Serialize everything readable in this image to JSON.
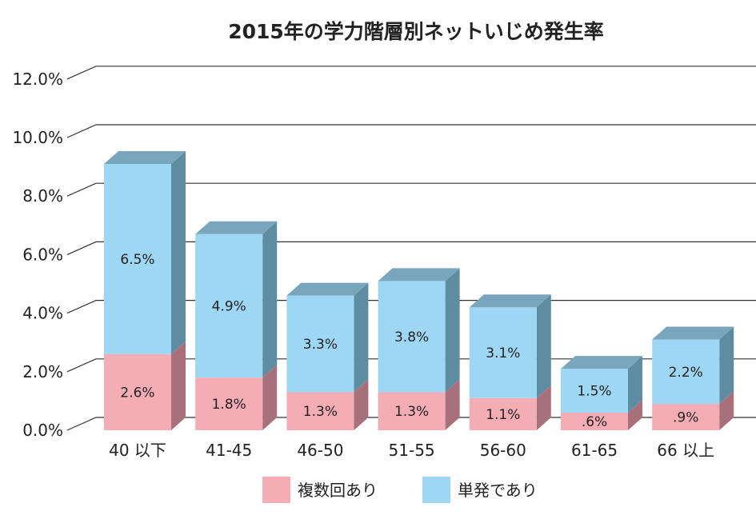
{
  "chart_data": {
    "type": "bar",
    "stacked": true,
    "three_d": true,
    "title": "2015年の学力階層別ネットいじめ発生率",
    "xlabel": "",
    "ylabel": "",
    "categories": [
      "40 以下",
      "41-45",
      "46-50",
      "51-55",
      "56-60",
      "61-65",
      "66 以上"
    ],
    "series": [
      {
        "name": "複数回あり",
        "values": [
          2.6,
          1.8,
          1.3,
          1.3,
          1.1,
          0.6,
          0.9
        ],
        "labels": [
          "2.6%",
          "1.8%",
          "1.3%",
          "1.3%",
          "1.1%",
          ".6%",
          ".9%"
        ],
        "color": "#f4adb5",
        "side_color": "#a8707a",
        "top_color": "#d8929b"
      },
      {
        "name": "単発であり",
        "values": [
          6.5,
          4.9,
          3.3,
          3.8,
          3.1,
          1.5,
          2.2
        ],
        "labels": [
          "6.5%",
          "4.9%",
          "3.3%",
          "3.8%",
          "3.1%",
          "1.5%",
          "2.2%"
        ],
        "color": "#9dd7f3",
        "side_color": "#5e8ca0",
        "top_color": "#7aa6bd"
      }
    ],
    "ylim": [
      0,
      12
    ],
    "yticks": [
      0,
      2,
      4,
      6,
      8,
      10,
      12
    ],
    "ytick_labels": [
      "0.0%",
      "2.0%",
      "4.0%",
      "6.0%",
      "8.0%",
      "10.0%",
      "12.0%"
    ],
    "grid": true,
    "legend_position": "bottom"
  }
}
